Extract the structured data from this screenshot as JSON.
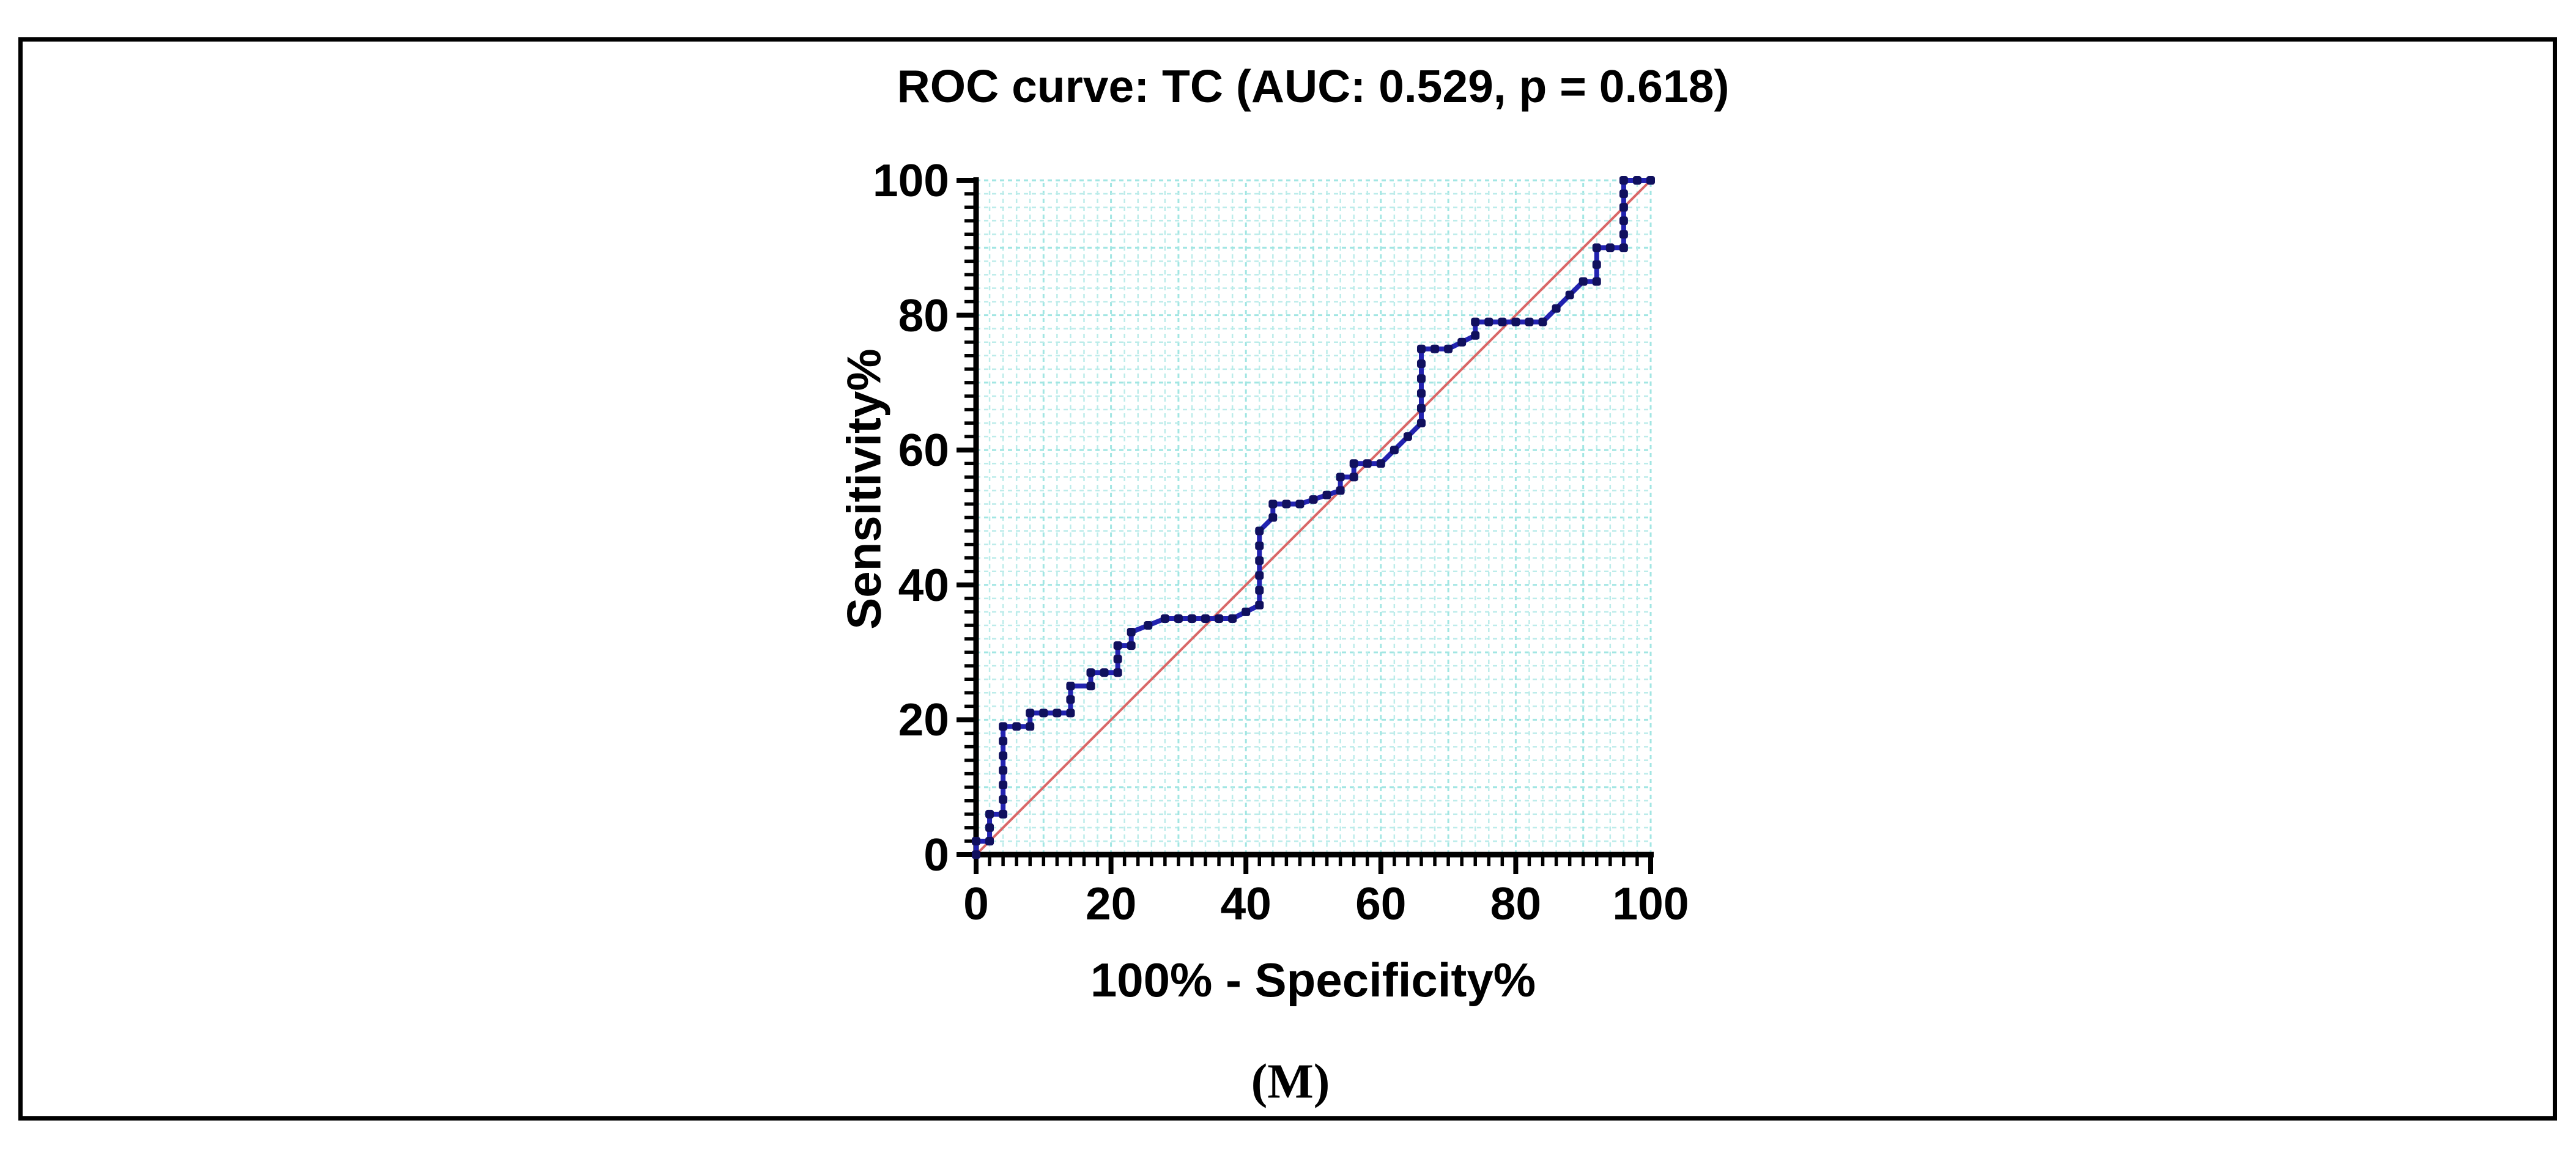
{
  "figure": {
    "background_color": "#ffffff",
    "border_color": "#000000"
  },
  "caption": "(M)",
  "chart_data": {
    "type": "line",
    "subtype": "roc-step-curve",
    "title": "ROC curve: TC (AUC: 0.529, p = 0.618)",
    "xlabel": "100% - Specificity%",
    "ylabel": "Sensitivity%",
    "xlim": [
      0,
      100
    ],
    "ylim": [
      0,
      100
    ],
    "x_ticks": [
      0,
      20,
      40,
      60,
      80,
      100
    ],
    "y_ticks": [
      0,
      20,
      40,
      60,
      80,
      100
    ],
    "minor_tick_step": 2,
    "grid": true,
    "grid_step": 2,
    "grid_minor_color": "#bcecea",
    "grid_major_color": "#a2e6e3",
    "axis_color": "#000000",
    "auc": 0.529,
    "p_value": 0.618,
    "legend_position": "none",
    "series": [
      {
        "name": "ROC curve (TC)",
        "color": "#2222b0",
        "marker_color": "#10105e",
        "marker": "square",
        "points": [
          [
            0,
            0
          ],
          [
            0,
            2
          ],
          [
            2,
            2
          ],
          [
            2,
            6
          ],
          [
            4,
            6
          ],
          [
            4,
            19
          ],
          [
            8,
            19
          ],
          [
            8,
            21
          ],
          [
            14,
            21
          ],
          [
            14,
            25
          ],
          [
            17,
            25
          ],
          [
            17,
            27
          ],
          [
            21,
            27
          ],
          [
            21,
            31
          ],
          [
            23,
            31
          ],
          [
            23,
            33
          ],
          [
            28,
            35
          ],
          [
            38,
            35
          ],
          [
            42,
            37
          ],
          [
            42,
            48
          ],
          [
            44,
            50
          ],
          [
            44,
            52
          ],
          [
            48,
            52
          ],
          [
            54,
            54
          ],
          [
            54,
            56
          ],
          [
            56,
            56
          ],
          [
            56,
            58
          ],
          [
            60,
            58
          ],
          [
            66,
            64
          ],
          [
            66,
            75
          ],
          [
            70,
            75
          ],
          [
            74,
            77
          ],
          [
            74,
            79
          ],
          [
            84,
            79
          ],
          [
            90,
            85
          ],
          [
            92,
            85
          ],
          [
            92,
            90
          ],
          [
            96,
            90
          ],
          [
            96,
            100
          ],
          [
            100,
            100
          ]
        ]
      },
      {
        "name": "Reference diagonal",
        "color": "#d96868",
        "marker": "none",
        "points": [
          [
            0,
            0
          ],
          [
            100,
            100
          ]
        ]
      }
    ]
  }
}
